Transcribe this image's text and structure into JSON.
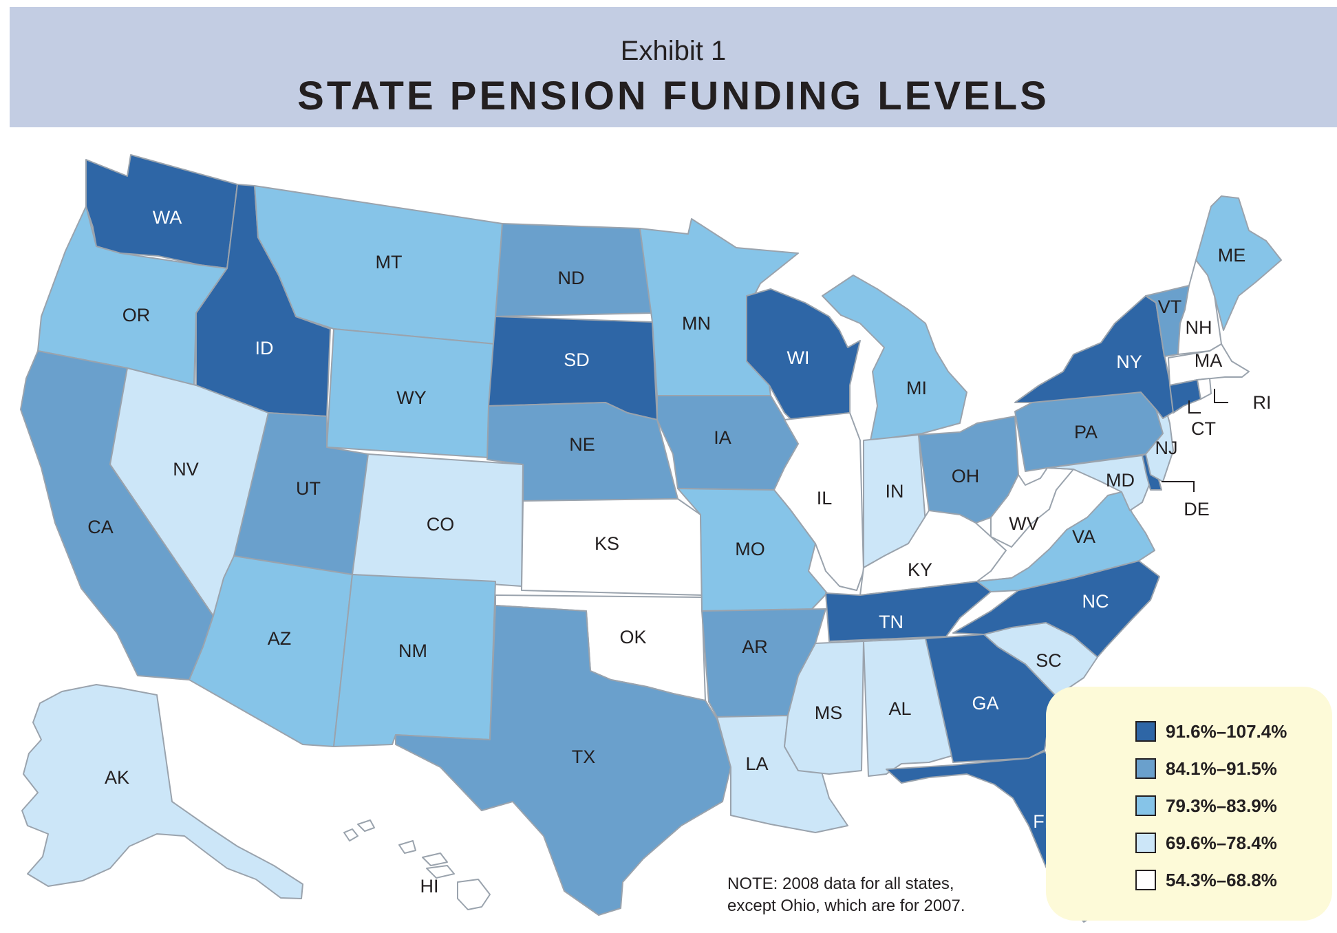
{
  "header": {
    "exhibit": "Exhibit 1",
    "title": "STATE PENSION FUNDING LEVELS"
  },
  "note": {
    "line1": "NOTE: 2008 data for all states,",
    "line2": "except Ohio, which are for 2007."
  },
  "legend": [
    {
      "label": "91.6%–107.4%",
      "color": "#2e66a6"
    },
    {
      "label": "84.1%–91.5%",
      "color": "#6aa0cc"
    },
    {
      "label": "79.3%–83.9%",
      "color": "#86c4e8"
    },
    {
      "label": "69.6%–78.4%",
      "color": "#cce6f8"
    },
    {
      "label": "54.3%–68.8%",
      "color": "#ffffff"
    }
  ],
  "states": [
    {
      "code": "WA",
      "tier": 0
    },
    {
      "code": "OR",
      "tier": 2
    },
    {
      "code": "CA",
      "tier": 1
    },
    {
      "code": "ID",
      "tier": 0
    },
    {
      "code": "NV",
      "tier": 3
    },
    {
      "code": "MT",
      "tier": 2
    },
    {
      "code": "WY",
      "tier": 2
    },
    {
      "code": "UT",
      "tier": 1
    },
    {
      "code": "AZ",
      "tier": 2
    },
    {
      "code": "CO",
      "tier": 3
    },
    {
      "code": "NM",
      "tier": 2
    },
    {
      "code": "ND",
      "tier": 1
    },
    {
      "code": "SD",
      "tier": 0
    },
    {
      "code": "NE",
      "tier": 1
    },
    {
      "code": "KS",
      "tier": 4
    },
    {
      "code": "OK",
      "tier": 4
    },
    {
      "code": "TX",
      "tier": 1
    },
    {
      "code": "MN",
      "tier": 2
    },
    {
      "code": "IA",
      "tier": 1
    },
    {
      "code": "MO",
      "tier": 2
    },
    {
      "code": "AR",
      "tier": 1
    },
    {
      "code": "LA",
      "tier": 3
    },
    {
      "code": "WI",
      "tier": 0
    },
    {
      "code": "IL",
      "tier": 4
    },
    {
      "code": "MI",
      "tier": 2
    },
    {
      "code": "IN",
      "tier": 3
    },
    {
      "code": "OH",
      "tier": 1
    },
    {
      "code": "KY",
      "tier": 4
    },
    {
      "code": "TN",
      "tier": 0
    },
    {
      "code": "MS",
      "tier": 3
    },
    {
      "code": "AL",
      "tier": 3
    },
    {
      "code": "GA",
      "tier": 0
    },
    {
      "code": "FL",
      "tier": 0
    },
    {
      "code": "SC",
      "tier": 3
    },
    {
      "code": "NC",
      "tier": 0
    },
    {
      "code": "VA",
      "tier": 2
    },
    {
      "code": "WV",
      "tier": 4
    },
    {
      "code": "PA",
      "tier": 1
    },
    {
      "code": "NY",
      "tier": 0
    },
    {
      "code": "VT",
      "tier": 1
    },
    {
      "code": "NH",
      "tier": 4
    },
    {
      "code": "ME",
      "tier": 2
    },
    {
      "code": "MA",
      "tier": 4
    },
    {
      "code": "RI",
      "tier": 4
    },
    {
      "code": "CT",
      "tier": 0
    },
    {
      "code": "NJ",
      "tier": 3
    },
    {
      "code": "MD",
      "tier": 3
    },
    {
      "code": "DE",
      "tier": 0
    },
    {
      "code": "AK",
      "tier": 3
    },
    {
      "code": "HI",
      "tier": 4
    }
  ]
}
